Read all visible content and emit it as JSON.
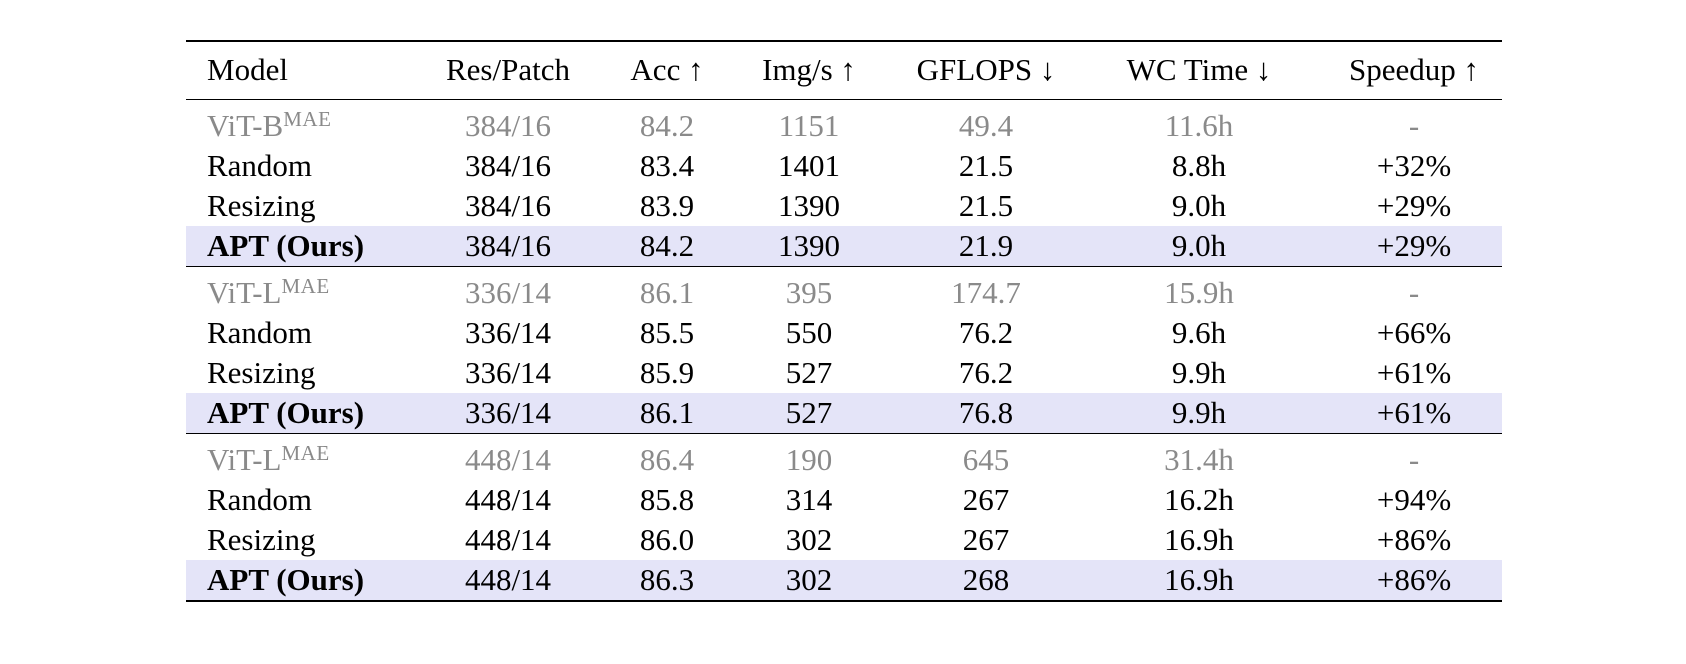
{
  "headers": [
    "Model",
    "Res/Patch",
    "Acc ↑",
    "Img/s ↑",
    "GFLOPS ↓",
    "WC Time ↓",
    "Speedup ↑"
  ],
  "highlight_color": "#e4e4f8",
  "baseline_color": "#8a8a8a",
  "groups": [
    {
      "rows": [
        {
          "model": "ViT-B",
          "sup": "MAE",
          "res": "384/16",
          "acc": "84.2",
          "imgs": "1151",
          "gflops": "49.4",
          "wc": "11.6h",
          "speedup": "-"
        },
        {
          "model": "Random",
          "res": "384/16",
          "acc": "83.4",
          "imgs": "1401",
          "gflops": "21.5",
          "wc": "8.8h",
          "speedup": "+32%"
        },
        {
          "model": "Resizing",
          "res": "384/16",
          "acc": "83.9",
          "imgs": "1390",
          "gflops": "21.5",
          "wc": "9.0h",
          "speedup": "+29%"
        },
        {
          "model": "APT (Ours)",
          "res": "384/16",
          "acc": "84.2",
          "imgs": "1390",
          "gflops": "21.9",
          "wc": "9.0h",
          "speedup": "+29%"
        }
      ]
    },
    {
      "rows": [
        {
          "model": "ViT-L",
          "sup": "MAE",
          "res": "336/14",
          "acc": "86.1",
          "imgs": "395",
          "gflops": "174.7",
          "wc": "15.9h",
          "speedup": "-"
        },
        {
          "model": "Random",
          "res": "336/14",
          "acc": "85.5",
          "imgs": "550",
          "gflops": "76.2",
          "wc": "9.6h",
          "speedup": "+66%"
        },
        {
          "model": "Resizing",
          "res": "336/14",
          "acc": "85.9",
          "imgs": "527",
          "gflops": "76.2",
          "wc": "9.9h",
          "speedup": "+61%"
        },
        {
          "model": "APT (Ours)",
          "res": "336/14",
          "acc": "86.1",
          "imgs": "527",
          "gflops": "76.8",
          "wc": "9.9h",
          "speedup": "+61%"
        }
      ]
    },
    {
      "rows": [
        {
          "model": "ViT-L",
          "sup": "MAE",
          "res": "448/14",
          "acc": "86.4",
          "imgs": "190",
          "gflops": "645",
          "wc": "31.4h",
          "speedup": "-"
        },
        {
          "model": "Random",
          "res": "448/14",
          "acc": "85.8",
          "imgs": "314",
          "gflops": "267",
          "wc": "16.2h",
          "speedup": "+94%"
        },
        {
          "model": "Resizing",
          "res": "448/14",
          "acc": "86.0",
          "imgs": "302",
          "gflops": "267",
          "wc": "16.9h",
          "speedup": "+86%"
        },
        {
          "model": "APT (Ours)",
          "res": "448/14",
          "acc": "86.3",
          "imgs": "302",
          "gflops": "268",
          "wc": "16.9h",
          "speedup": "+86%"
        }
      ]
    }
  ]
}
